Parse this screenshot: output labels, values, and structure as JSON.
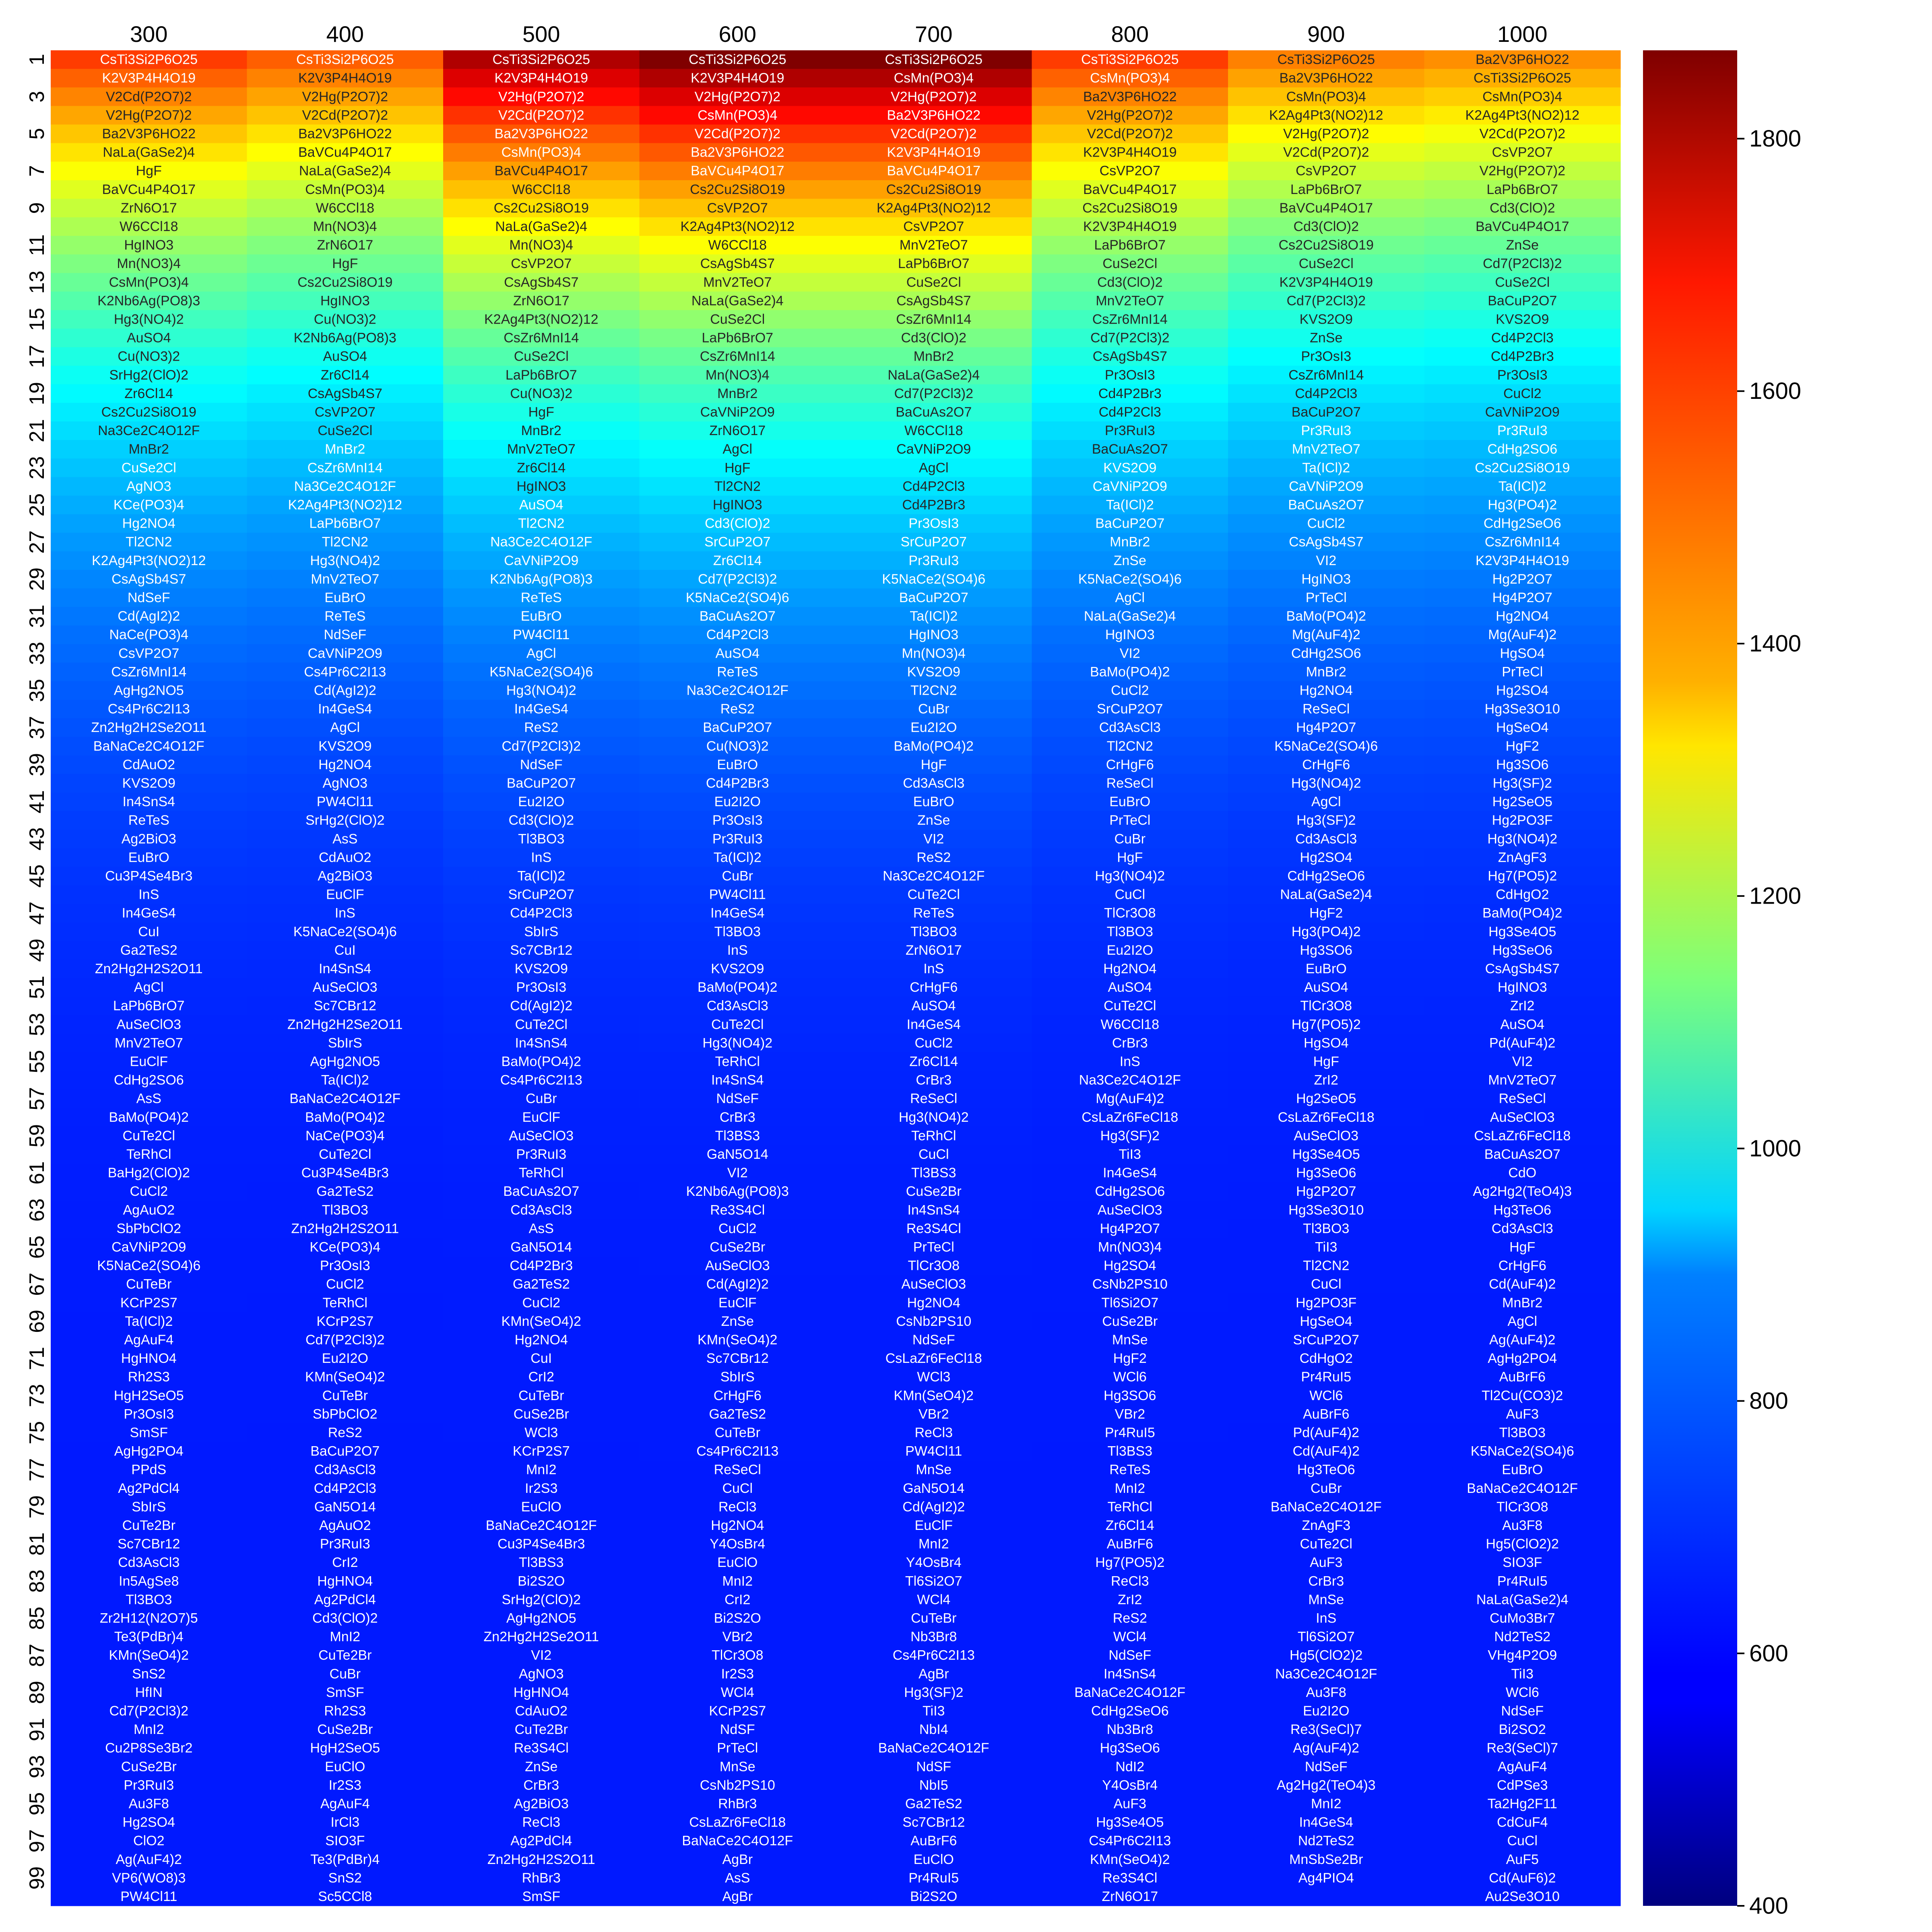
{
  "chart_data": {
    "type": "heatmap",
    "title": "",
    "xlabel": "",
    "ylabel": "",
    "columns": [
      "300",
      "400",
      "500",
      "600",
      "700",
      "800",
      "900",
      "1000"
    ],
    "row_tick_labels": [
      "1",
      "3",
      "5",
      "7",
      "9",
      "11",
      "13",
      "15",
      "17",
      "19",
      "21",
      "23",
      "25",
      "27",
      "29",
      "31",
      "33",
      "35",
      "37",
      "39",
      "41",
      "43",
      "45",
      "47",
      "49",
      "51",
      "53",
      "55",
      "57",
      "59",
      "61",
      "63",
      "65",
      "67",
      "69",
      "71",
      "73",
      "75",
      "77",
      "79",
      "81",
      "83",
      "85",
      "87",
      "89",
      "91",
      "93",
      "95",
      "97",
      "99"
    ],
    "colorbar": {
      "colormap": "jet",
      "range": [
        400,
        1870
      ],
      "ticks": [
        "400",
        "600",
        "800",
        "1000",
        "1200",
        "1400",
        "1600",
        "1800"
      ]
    },
    "value_endpoints_estimated": {
      "rank1_values": [
        1600,
        1550,
        1800,
        1870,
        1870,
        1600,
        1500,
        1480
      ],
      "rank100_value": 620
    },
    "columns_data": [
      [
        "CsTi3Si2P6O25",
        "K2V3P4H4O19",
        "V2Cd(P2O7)2",
        "V2Hg(P2O7)2",
        "Ba2V3P6HO22",
        "NaLa(GaSe2)4",
        "HgF",
        "BaVCu4P4O17",
        "ZrN6O17",
        "W6CCl18",
        "HgINO3",
        "Mn(NO3)4",
        "CsMn(PO3)4",
        "K2Nb6Ag(PO8)3",
        "Hg3(NO4)2",
        "AuSO4",
        "Cu(NO3)2",
        "SrHg2(ClO)2",
        "Zr6Cl14",
        "Cs2Cu2Si8O19",
        "Na3Ce2C4O12F",
        "MnBr2",
        "CuSe2Cl",
        "AgNO3",
        "KCe(PO3)4",
        "Hg2NO4",
        "Tl2CN2",
        "K2Ag4Pt3(NO2)12",
        "CsAgSb4S7",
        "NdSeF",
        "Cd(AgI2)2",
        "NaCe(PO3)4",
        "CsVP2O7",
        "CsZr6MnI14",
        "AgHg2NO5",
        "Cs4Pr6C2I13",
        "Zn2Hg2H2Se2O11",
        "BaNaCe2C4O12F",
        "CdAuO2",
        "KVS2O9",
        "In4SnS4",
        "ReTeS",
        "Ag2BiO3",
        "EuBrO",
        "Cu3P4Se4Br3",
        "InS",
        "In4GeS4",
        "CuI",
        "Ga2TeS2",
        "Zn2Hg2H2S2O11",
        "AgCl",
        "LaPb6BrO7",
        "AuSeClO3",
        "MnV2TeO7",
        "EuClF",
        "CdHg2SO6",
        "AsS",
        "BaMo(PO4)2",
        "CuTe2Cl",
        "TeRhCl",
        "BaHg2(ClO)2",
        "CuCl2",
        "AgAuO2",
        "SbPbClO2",
        "CaVNiP2O9",
        "K5NaCe2(SO4)6",
        "CuTeBr",
        "KCrP2S7",
        "Ta(ICl)2",
        "AgAuF4",
        "HgHNO4",
        "Rh2S3",
        "HgH2SeO5",
        "Pr3OsI3",
        "SmSF",
        "AgHg2PO4",
        "PPdS",
        "Ag2PdCl4",
        "SbIrS",
        "CuTe2Br",
        "Sc7CBr12",
        "Cd3AsCl3",
        "In5AgSe8",
        "Tl3BO3",
        "Zr2H12(N2O7)5",
        "Te3(PdBr)4",
        "KMn(SeO4)2",
        "SnS2",
        "HfIN",
        "Cd7(P2Cl3)2",
        "MnI2",
        "Cu2P8Se3Br2",
        "CuSe2Br",
        "Pr3RuI3",
        "Au3F8",
        "Hg2SO4",
        "ClO2",
        "Ag(AuF4)2",
        "VP6(WO8)3",
        "PW4Cl11"
      ],
      [
        "CsTi3Si2P6O25",
        "K2V3P4H4O19",
        "V2Hg(P2O7)2",
        "V2Cd(P2O7)2",
        "Ba2V3P6HO22",
        "BaVCu4P4O17",
        "NaLa(GaSe2)4",
        "CsMn(PO3)4",
        "W6CCl18",
        "Mn(NO3)4",
        "ZrN6O17",
        "HgF",
        "Cs2Cu2Si8O19",
        "HgINO3",
        "Cu(NO3)2",
        "K2Nb6Ag(PO8)3",
        "AuSO4",
        "Zr6Cl14",
        "CsAgSb4S7",
        "CsVP2O7",
        "CuSe2Cl",
        "MnBr2",
        "CsZr6MnI14",
        "Na3Ce2C4O12F",
        "K2Ag4Pt3(NO2)12",
        "LaPb6BrO7",
        "Tl2CN2",
        "Hg3(NO4)2",
        "MnV2TeO7",
        "EuBrO",
        "ReTeS",
        "NdSeF",
        "CaVNiP2O9",
        "Cs4Pr6C2I13",
        "Cd(AgI2)2",
        "In4GeS4",
        "AgCl",
        "KVS2O9",
        "Hg2NO4",
        "AgNO3",
        "PW4Cl11",
        "SrHg2(ClO)2",
        "AsS",
        "CdAuO2",
        "Ag2BiO3",
        "EuClF",
        "InS",
        "K5NaCe2(SO4)6",
        "CuI",
        "In4SnS4",
        "AuSeClO3",
        "Sc7CBr12",
        "Zn2Hg2H2Se2O11",
        "SbIrS",
        "AgHg2NO5",
        "Ta(ICl)2",
        "BaNaCe2C4O12F",
        "BaMo(PO4)2",
        "NaCe(PO3)4",
        "CuTe2Cl",
        "Cu3P4Se4Br3",
        "Ga2TeS2",
        "Tl3BO3",
        "Zn2Hg2H2S2O11",
        "KCe(PO3)4",
        "Pr3OsI3",
        "CuCl2",
        "TeRhCl",
        "KCrP2S7",
        "Cd7(P2Cl3)2",
        "Eu2I2O",
        "KMn(SeO4)2",
        "CuTeBr",
        "SbPbClO2",
        "ReS2",
        "BaCuP2O7",
        "Cd3AsCl3",
        "Cd4P2Cl3",
        "GaN5O14",
        "AgAuO2",
        "Pr3RuI3",
        "CrI2",
        "HgHNO4",
        "Ag2PdCl4",
        "Cd3(ClO)2",
        "MnI2",
        "CuTe2Br",
        "CuBr",
        "SmSF",
        "Rh2S3",
        "CuSe2Br",
        "HgH2SeO5",
        "EuClO",
        "Ir2S3",
        "AgAuF4",
        "IrCl3",
        "SIO3F",
        "Te3(PdBr)4",
        "SnS2",
        "Sc5CCl8"
      ],
      [
        "CsTi3Si2P6O25",
        "K2V3P4H4O19",
        "V2Hg(P2O7)2",
        "V2Cd(P2O7)2",
        "Ba2V3P6HO22",
        "CsMn(PO3)4",
        "BaVCu4P4O17",
        "W6CCl18",
        "Cs2Cu2Si8O19",
        "NaLa(GaSe2)4",
        "Mn(NO3)4",
        "CsVP2O7",
        "CsAgSb4S7",
        "ZrN6O17",
        "K2Ag4Pt3(NO2)12",
        "CsZr6MnI14",
        "CuSe2Cl",
        "LaPb6BrO7",
        "Cu(NO3)2",
        "HgF",
        "MnBr2",
        "MnV2TeO7",
        "Zr6Cl14",
        "HgINO3",
        "AuSO4",
        "Tl2CN2",
        "Na3Ce2C4O12F",
        "CaVNiP2O9",
        "K2Nb6Ag(PO8)3",
        "ReTeS",
        "EuBrO",
        "PW4Cl11",
        "AgCl",
        "K5NaCe2(SO4)6",
        "Hg3(NO4)2",
        "In4GeS4",
        "ReS2",
        "Cd7(P2Cl3)2",
        "NdSeF",
        "BaCuP2O7",
        "Eu2I2O",
        "Cd3(ClO)2",
        "Tl3BO3",
        "InS",
        "Ta(ICl)2",
        "SrCuP2O7",
        "Cd4P2Cl3",
        "SbIrS",
        "Sc7CBr12",
        "KVS2O9",
        "Pr3OsI3",
        "Cd(AgI2)2",
        "CuTe2Cl",
        "In4SnS4",
        "BaMo(PO4)2",
        "Cs4Pr6C2I13",
        "CuBr",
        "EuClF",
        "AuSeClO3",
        "Pr3RuI3",
        "TeRhCl",
        "BaCuAs2O7",
        "Cd3AsCl3",
        "AsS",
        "GaN5O14",
        "Cd4P2Br3",
        "Ga2TeS2",
        "CuCl2",
        "KMn(SeO4)2",
        "Hg2NO4",
        "CuI",
        "CrI2",
        "CuTeBr",
        "CuSe2Br",
        "WCl3",
        "KCrP2S7",
        "MnI2",
        "Ir2S3",
        "EuClO",
        "BaNaCe2C4O12F",
        "Cu3P4Se4Br3",
        "Tl3BS3",
        "Bi2S2O",
        "SrHg2(ClO)2",
        "AgHg2NO5",
        "Zn2Hg2H2Se2O11",
        "VI2",
        "AgNO3",
        "HgHNO4",
        "CdAuO2",
        "CuTe2Br",
        "Re3S4Cl",
        "ZnSe",
        "CrBr3",
        "Ag2BiO3",
        "ReCl3",
        "Ag2PdCl4",
        "Zn2Hg2H2S2O11",
        "RhBr3",
        "SmSF"
      ],
      [
        "CsTi3Si2P6O25",
        "K2V3P4H4O19",
        "V2Hg(P2O7)2",
        "CsMn(PO3)4",
        "V2Cd(P2O7)2",
        "Ba2V3P6HO22",
        "BaVCu4P4O17",
        "Cs2Cu2Si8O19",
        "CsVP2O7",
        "K2Ag4Pt3(NO2)12",
        "W6CCl18",
        "CsAgSb4S7",
        "MnV2TeO7",
        "NaLa(GaSe2)4",
        "CuSe2Cl",
        "LaPb6BrO7",
        "CsZr6MnI14",
        "Mn(NO3)4",
        "MnBr2",
        "CaVNiP2O9",
        "ZrN6O17",
        "AgCl",
        "HgF",
        "Tl2CN2",
        "HgINO3",
        "Cd3(ClO)2",
        "SrCuP2O7",
        "Zr6Cl14",
        "Cd7(P2Cl3)2",
        "K5NaCe2(SO4)6",
        "BaCuAs2O7",
        "Cd4P2Cl3",
        "AuSO4",
        "ReTeS",
        "Na3Ce2C4O12F",
        "ReS2",
        "BaCuP2O7",
        "Cu(NO3)2",
        "EuBrO",
        "Cd4P2Br3",
        "Eu2I2O",
        "Pr3OsI3",
        "Pr3RuI3",
        "Ta(ICl)2",
        "CuBr",
        "PW4Cl11",
        "In4GeS4",
        "Tl3BO3",
        "InS",
        "KVS2O9",
        "BaMo(PO4)2",
        "Cd3AsCl3",
        "CuTe2Cl",
        "Hg3(NO4)2",
        "TeRhCl",
        "In4SnS4",
        "NdSeF",
        "CrBr3",
        "Tl3BS3",
        "GaN5O14",
        "VI2",
        "K2Nb6Ag(PO8)3",
        "Re3S4Cl",
        "CuCl2",
        "CuSe2Br",
        "AuSeClO3",
        "Cd(AgI2)2",
        "EuClF",
        "ZnSe",
        "KMn(SeO4)2",
        "Sc7CBr12",
        "SbIrS",
        "CrHgF6",
        "Ga2TeS2",
        "CuTeBr",
        "Cs4Pr6C2I13",
        "ReSeCl",
        "CuCl",
        "ReCl3",
        "Hg2NO4",
        "Y4OsBr4",
        "EuClO",
        "MnI2",
        "CrI2",
        "Bi2S2O",
        "VBr2",
        "TlCr3O8",
        "Ir2S3",
        "WCl4",
        "KCrP2S7",
        "NdSF",
        "PrTeCl",
        "MnSe",
        "CsNb2PS10",
        "RhBr3",
        "CsLaZr6FeCl18",
        "BaNaCe2C4O12F",
        "AgBr",
        "AsS",
        "AgBr"
      ],
      [
        "CsTi3Si2P6O25",
        "CsMn(PO3)4",
        "V2Hg(P2O7)2",
        "Ba2V3P6HO22",
        "V2Cd(P2O7)2",
        "K2V3P4H4O19",
        "BaVCu4P4O17",
        "Cs2Cu2Si8O19",
        "K2Ag4Pt3(NO2)12",
        "CsVP2O7",
        "MnV2TeO7",
        "LaPb6BrO7",
        "CuSe2Cl",
        "CsAgSb4S7",
        "CsZr6MnI14",
        "Cd3(ClO)2",
        "MnBr2",
        "NaLa(GaSe2)4",
        "Cd7(P2Cl3)2",
        "BaCuAs2O7",
        "W6CCl18",
        "CaVNiP2O9",
        "AgCl",
        "Cd4P2Cl3",
        "Cd4P2Br3",
        "Pr3OsI3",
        "SrCuP2O7",
        "Pr3RuI3",
        "K5NaCe2(SO4)6",
        "BaCuP2O7",
        "Ta(ICl)2",
        "HgINO3",
        "Mn(NO3)4",
        "KVS2O9",
        "Tl2CN2",
        "CuBr",
        "Eu2I2O",
        "BaMo(PO4)2",
        "HgF",
        "Cd3AsCl3",
        "EuBrO",
        "ZnSe",
        "VI2",
        "ReS2",
        "Na3Ce2C4O12F",
        "CuTe2Cl",
        "ReTeS",
        "Tl3BO3",
        "ZrN6O17",
        "InS",
        "CrHgF6",
        "AuSO4",
        "In4GeS4",
        "CuCl2",
        "Zr6Cl14",
        "CrBr3",
        "ReSeCl",
        "Hg3(NO4)2",
        "TeRhCl",
        "CuCl",
        "Tl3BS3",
        "CuSe2Br",
        "In4SnS4",
        "Re3S4Cl",
        "PrTeCl",
        "TlCr3O8",
        "AuSeClO3",
        "Hg2NO4",
        "CsNb2PS10",
        "NdSeF",
        "CsLaZr6FeCl18",
        "WCl3",
        "KMn(SeO4)2",
        "VBr2",
        "ReCl3",
        "PW4Cl11",
        "MnSe",
        "GaN5O14",
        "Cd(AgI2)2",
        "EuClF",
        "MnI2",
        "Y4OsBr4",
        "Tl6Si2O7",
        "WCl4",
        "CuTeBr",
        "Nb3Br8",
        "Cs4Pr6C2I13",
        "AgBr",
        "Hg3(SF)2",
        "TiI3",
        "NbI4",
        "BaNaCe2C4O12F",
        "NdSF",
        "NbI5",
        "Ga2TeS2",
        "Sc7CBr12",
        "AuBrF6",
        "EuClO",
        "Pr4RuI5",
        "Bi2S2O"
      ],
      [
        "CsTi3Si2P6O25",
        "CsMn(PO3)4",
        "Ba2V3P6HO22",
        "V2Hg(P2O7)2",
        "V2Cd(P2O7)2",
        "K2V3P4H4O19",
        "CsVP2O7",
        "BaVCu4P4O17",
        "Cs2Cu2Si8O19",
        "K2V3P4H4O19",
        "LaPb6BrO7",
        "CuSe2Cl",
        "Cd3(ClO)2",
        "MnV2TeO7",
        "CsZr6MnI14",
        "Cd7(P2Cl3)2",
        "CsAgSb4S7",
        "Pr3OsI3",
        "Cd4P2Br3",
        "Cd4P2Cl3",
        "Pr3RuI3",
        "BaCuAs2O7",
        "KVS2O9",
        "CaVNiP2O9",
        "Ta(ICl)2",
        "BaCuP2O7",
        "MnBr2",
        "ZnSe",
        "K5NaCe2(SO4)6",
        "AgCl",
        "NaLa(GaSe2)4",
        "HgINO3",
        "VI2",
        "BaMo(PO4)2",
        "CuCl2",
        "SrCuP2O7",
        "Cd3AsCl3",
        "Tl2CN2",
        "CrHgF6",
        "ReSeCl",
        "EuBrO",
        "PrTeCl",
        "CuBr",
        "HgF",
        "Hg3(NO4)2",
        "CuCl",
        "TlCr3O8",
        "Tl3BO3",
        "Eu2I2O",
        "Hg2NO4",
        "AuSO4",
        "CuTe2Cl",
        "W6CCl18",
        "CrBr3",
        "InS",
        "Na3Ce2C4O12F",
        "Mg(AuF4)2",
        "CsLaZr6FeCl18",
        "Hg3(SF)2",
        "TiI3",
        "In4GeS4",
        "CdHg2SO6",
        "AuSeClO3",
        "Hg4P2O7",
        "Mn(NO3)4",
        "Hg2SO4",
        "CsNb2PS10",
        "Tl6Si2O7",
        "CuSe2Br",
        "MnSe",
        "HgF2",
        "WCl6",
        "Hg3SO6",
        "VBr2",
        "Pr4RuI5",
        "Tl3BS3",
        "ReTeS",
        "MnI2",
        "TeRhCl",
        "Zr6Cl14",
        "AuBrF6",
        "Hg7(PO5)2",
        "ReCl3",
        "ZrI2",
        "ReS2",
        "WCl4",
        "NdSeF",
        "In4SnS4",
        "BaNaCe2C4O12F",
        "CdHg2SeO6",
        "Nb3Br8",
        "Hg3SeO6",
        "NdI2",
        "Y4OsBr4",
        "AuF3",
        "Hg3Se4O5",
        "Cs4Pr6C2I13",
        "KMn(SeO4)2",
        "Re3S4Cl",
        "ZrN6O17"
      ],
      [
        "CsTi3Si2P6O25",
        "Ba2V3P6HO22",
        "CsMn(PO3)4",
        "K2Ag4Pt3(NO2)12",
        "V2Hg(P2O7)2",
        "V2Cd(P2O7)2",
        "CsVP2O7",
        "LaPb6BrO7",
        "BaVCu4P4O17",
        "Cd3(ClO)2",
        "Cs2Cu2Si8O19",
        "CuSe2Cl",
        "K2V3P4H4O19",
        "Cd7(P2Cl3)2",
        "KVS2O9",
        "ZnSe",
        "Pr3OsI3",
        "CsZr6MnI14",
        "Cd4P2Cl3",
        "BaCuP2O7",
        "Pr3RuI3",
        "MnV2TeO7",
        "Ta(ICl)2",
        "CaVNiP2O9",
        "BaCuAs2O7",
        "CuCl2",
        "CsAgSb4S7",
        "VI2",
        "HgINO3",
        "PrTeCl",
        "BaMo(PO4)2",
        "Mg(AuF4)2",
        "CdHg2SO6",
        "MnBr2",
        "Hg2NO4",
        "ReSeCl",
        "Hg4P2O7",
        "K5NaCe2(SO4)6",
        "CrHgF6",
        "Hg3(NO4)2",
        "AgCl",
        "Hg3(SF)2",
        "Cd3AsCl3",
        "Hg2SO4",
        "CdHg2SeO6",
        "NaLa(GaSe2)4",
        "HgF2",
        "Hg3(PO4)2",
        "Hg3SO6",
        "EuBrO",
        "AuSO4",
        "TlCr3O8",
        "Hg7(PO5)2",
        "HgSO4",
        "HgF",
        "ZrI2",
        "Hg2SeO5",
        "CsLaZr6FeCl18",
        "AuSeClO3",
        "Hg3Se4O5",
        "Hg3SeO6",
        "Hg2P2O7",
        "Hg3Se3O10",
        "Tl3BO3",
        "TiI3",
        "Tl2CN2",
        "CuCl",
        "Hg2PO3F",
        "HgSeO4",
        "SrCuP2O7",
        "CdHgO2",
        "Pr4RuI5",
        "WCl6",
        "AuBrF6",
        "Pd(AuF4)2",
        "Cd(AuF4)2",
        "Hg3TeO6",
        "CuBr",
        "BaNaCe2C4O12F",
        "ZnAgF3",
        "CuTe2Cl",
        "AuF3",
        "CrBr3",
        "MnSe",
        "InS",
        "Tl6Si2O7",
        "Hg5(ClO2)2",
        "Na3Ce2C4O12F",
        "Au3F8",
        "Eu2I2O",
        "Re3(SeCl)7",
        "Ag(AuF4)2",
        "NdSeF",
        "Ag2Hg2(TeO4)3",
        "MnI2",
        "In4GeS4",
        "Nd2TeS2",
        "MnSbSe2Br",
        "Ag4PIO4"
      ],
      [
        "Ba2V3P6HO22",
        "CsTi3Si2P6O25",
        "CsMn(PO3)4",
        "K2Ag4Pt3(NO2)12",
        "V2Cd(P2O7)2",
        "CsVP2O7",
        "V2Hg(P2O7)2",
        "LaPb6BrO7",
        "Cd3(ClO)2",
        "BaVCu4P4O17",
        "ZnSe",
        "Cd7(P2Cl3)2",
        "CuSe2Cl",
        "BaCuP2O7",
        "KVS2O9",
        "Cd4P2Cl3",
        "Cd4P2Br3",
        "Pr3OsI3",
        "CuCl2",
        "CaVNiP2O9",
        "Pr3RuI3",
        "CdHg2SO6",
        "Cs2Cu2Si8O19",
        "Ta(ICl)2",
        "Hg3(PO4)2",
        "CdHg2SeO6",
        "CsZr6MnI14",
        "K2V3P4H4O19",
        "Hg2P2O7",
        "Hg4P2O7",
        "Hg2NO4",
        "Mg(AuF4)2",
        "HgSO4",
        "PrTeCl",
        "Hg2SO4",
        "Hg3Se3O10",
        "HgSeO4",
        "HgF2",
        "Hg3SO6",
        "Hg3(SF)2",
        "Hg2SeO5",
        "Hg2PO3F",
        "Hg3(NO4)2",
        "ZnAgF3",
        "Hg7(PO5)2",
        "CdHgO2",
        "BaMo(PO4)2",
        "Hg3Se4O5",
        "Hg3SeO6",
        "CsAgSb4S7",
        "HgINO3",
        "ZrI2",
        "AuSO4",
        "Pd(AuF4)2",
        "VI2",
        "MnV2TeO7",
        "ReSeCl",
        "AuSeClO3",
        "CsLaZr6FeCl18",
        "BaCuAs2O7",
        "CdO",
        "Ag2Hg2(TeO4)3",
        "Hg3TeO6",
        "Cd3AsCl3",
        "HgF",
        "CrHgF6",
        "Cd(AuF4)2",
        "MnBr2",
        "AgCl",
        "Ag(AuF4)2",
        "AgHg2PO4",
        "AuBrF6",
        "Tl2Cu(CO3)2",
        "AuF3",
        "Tl3BO3",
        "K5NaCe2(SO4)6",
        "EuBrO",
        "BaNaCe2C4O12F",
        "TlCr3O8",
        "Au3F8",
        "Hg5(ClO2)2",
        "SIO3F",
        "Pr4RuI5",
        "NaLa(GaSe2)4",
        "CuMo3Br7",
        "Nd2TeS2",
        "VHg4P2O9",
        "TiI3",
        "WCl6",
        "NdSeF",
        "Bi2SO2",
        "Re3(SeCl)7",
        "AgAuF4",
        "CdPSe3",
        "Ta2Hg2F11",
        "CdCuF4",
        "CuCl",
        "AuF5",
        "Cd(AuF6)2",
        "Au2Se3O10"
      ]
    ]
  }
}
